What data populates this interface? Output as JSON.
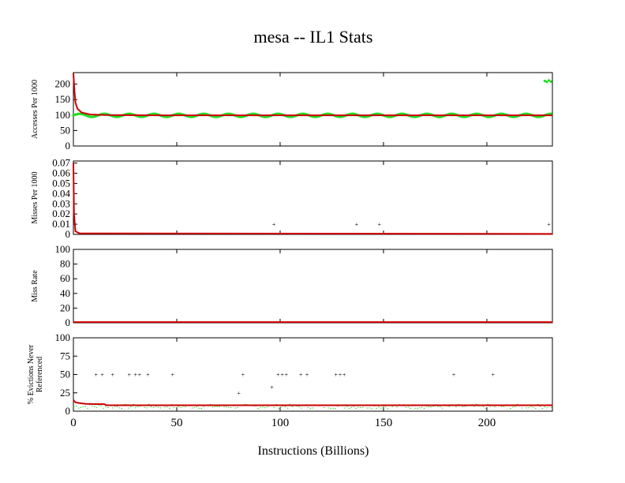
{
  "chart_data": {
    "type": "scatter",
    "title": "mesa -- IL1  Stats",
    "xlabel": "Instructions (Billions)",
    "xlim": [
      0,
      231.7
    ],
    "xticks": [
      0,
      50,
      100,
      150,
      200
    ],
    "colors": {
      "sample": "#22dd22",
      "cumulative": "#cc0000"
    },
    "panels": [
      {
        "ylabel": [
          "Accesses Per 1000"
        ],
        "ylim": [
          0,
          237
        ],
        "yticks": [
          "0",
          "50",
          "100",
          "150",
          "200"
        ],
        "ytickvals": [
          0,
          50,
          100,
          150,
          200
        ],
        "green": {
          "type": "oscillating",
          "base": 99,
          "amp": 5,
          "period": 12,
          "extra": [
            [
              228,
              210
            ],
            [
              229,
              207
            ],
            [
              230,
              212
            ],
            [
              231,
              208
            ]
          ]
        },
        "red": [
          [
            0,
            235
          ],
          [
            0.5,
            180
          ],
          [
            1,
            140
          ],
          [
            2,
            120
          ],
          [
            4,
            108
          ],
          [
            8,
            102
          ],
          [
            15,
            100
          ],
          [
            40,
            99
          ],
          [
            231.7,
            99
          ]
        ]
      },
      {
        "ylabel": [
          "Misses Per 1000"
        ],
        "ylim": [
          0,
          0.072
        ],
        "yticks": [
          "0",
          "0.01",
          "0.02",
          "0.03",
          "0.04",
          "0.05",
          "0.06",
          "0.07"
        ],
        "ytickvals": [
          0,
          0.01,
          0.02,
          0.03,
          0.04,
          0.05,
          0.06,
          0.07
        ],
        "green": {
          "type": "points",
          "points": [
            [
              97,
              0.01
            ],
            [
              137,
              0.01
            ],
            [
              148,
              0.01
            ],
            [
              230,
              0.01
            ]
          ]
        },
        "red": [
          [
            0,
            0.07
          ],
          [
            0.3,
            0.02
          ],
          [
            1,
            0.003
          ],
          [
            3,
            0.001
          ],
          [
            231.7,
            0.0005
          ]
        ]
      },
      {
        "ylabel": [
          "Miss Rate"
        ],
        "ylim": [
          0,
          100
        ],
        "yticks": [
          "0",
          "20",
          "40",
          "60",
          "80",
          "100"
        ],
        "ytickvals": [
          0,
          20,
          40,
          60,
          80,
          100
        ],
        "green": {
          "type": "points",
          "points": []
        },
        "red": [
          [
            0,
            1
          ],
          [
            231.7,
            1
          ]
        ]
      },
      {
        "ylabel": [
          "% Evictions Never",
          "Referenced"
        ],
        "ylim": [
          0,
          100
        ],
        "yticks": [
          "0",
          "25",
          "50",
          "75",
          "100"
        ],
        "ytickvals": [
          0,
          25,
          50,
          75,
          100
        ],
        "green": {
          "type": "points",
          "points": [
            [
              11,
              50
            ],
            [
              14,
              50
            ],
            [
              19,
              50
            ],
            [
              27,
              50
            ],
            [
              30,
              50
            ],
            [
              32,
              50
            ],
            [
              36,
              50
            ],
            [
              48,
              50
            ],
            [
              80,
              25
            ],
            [
              82,
              50
            ],
            [
              96,
              33
            ],
            [
              99,
              50
            ],
            [
              101,
              50
            ],
            [
              103,
              50
            ],
            [
              110,
              50
            ],
            [
              113,
              50
            ],
            [
              127,
              50
            ],
            [
              129,
              50
            ],
            [
              131,
              50
            ],
            [
              184,
              50
            ],
            [
              203,
              50
            ]
          ],
          "noise": {
            "from": 0,
            "to": 231,
            "base": 7,
            "spread": 3
          }
        },
        "red": [
          [
            0,
            15
          ],
          [
            1,
            12
          ],
          [
            3,
            11
          ],
          [
            6,
            10
          ],
          [
            15,
            9.5
          ],
          [
            16,
            8
          ],
          [
            231.7,
            8
          ]
        ]
      }
    ]
  }
}
